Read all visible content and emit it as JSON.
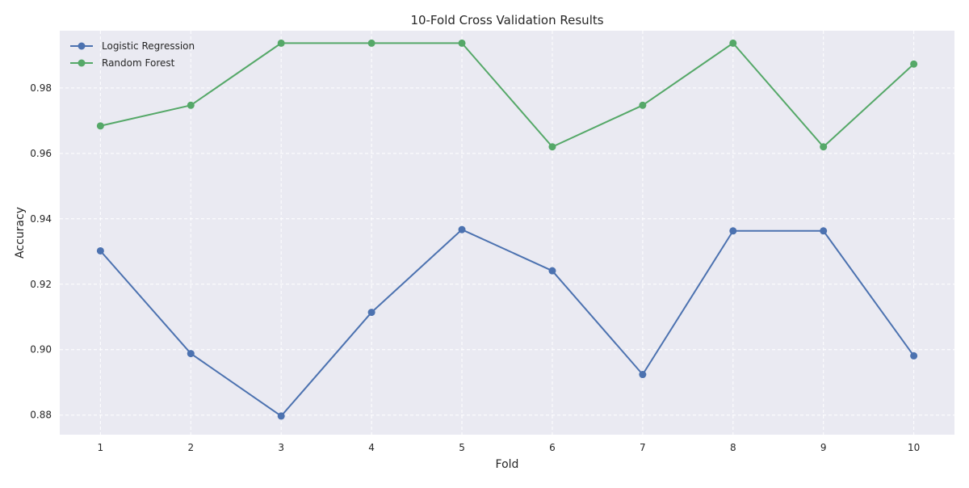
{
  "chart_data": {
    "type": "line",
    "title": "10-Fold Cross Validation Results",
    "xlabel": "Fold",
    "ylabel": "Accuracy",
    "x": [
      1,
      2,
      3,
      4,
      5,
      6,
      7,
      8,
      9,
      10
    ],
    "xlim": [
      0.55,
      10.45
    ],
    "ylim": [
      0.874,
      0.9975
    ],
    "yticks": [
      0.88,
      0.9,
      0.92,
      0.94,
      0.96,
      0.98
    ],
    "ytick_labels": [
      "0.88",
      "0.90",
      "0.92",
      "0.94",
      "0.96",
      "0.98"
    ],
    "grid": true,
    "legend_position": "top-left",
    "style": {
      "background": "#eaeaf2",
      "grid_color": "#ffffff"
    },
    "series": [
      {
        "name": "Logistic Regression",
        "color": "#4c72b0",
        "values": [
          0.9302,
          0.8988,
          0.8797,
          0.9114,
          0.9367,
          0.9241,
          0.8924,
          0.9363,
          0.9363,
          0.8981
        ]
      },
      {
        "name": "Random Forest",
        "color": "#55a868",
        "values": [
          0.9684,
          0.9747,
          0.9937,
          0.9937,
          0.9937,
          0.962,
          0.9747,
          0.9937,
          0.962,
          0.9873
        ]
      }
    ]
  }
}
